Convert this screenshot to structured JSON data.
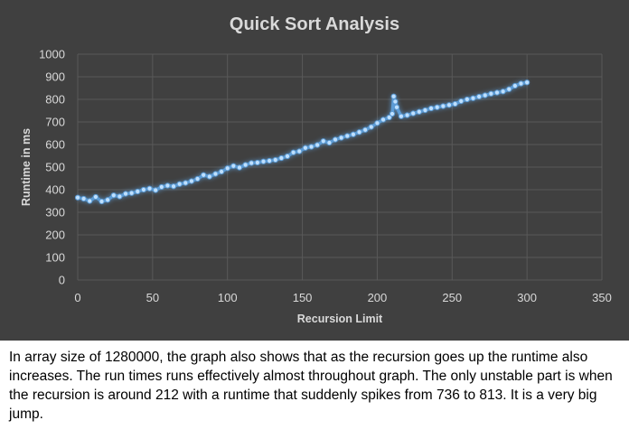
{
  "colors": {
    "background": "#404040",
    "gridline": "#595959",
    "text": "#d9d9d9",
    "series": "#5b9bd5",
    "caption_text": "#000000"
  },
  "chart_data": {
    "type": "scatter",
    "style": "scatter with smooth lines and markers, glowing blue",
    "title": "Quick Sort Analysis",
    "xlabel": "Recursion Limit",
    "ylabel": "Runtime in ms",
    "xlim": [
      0,
      350
    ],
    "ylim": [
      0,
      1000
    ],
    "xticks": [
      0,
      50,
      100,
      150,
      200,
      250,
      300,
      350
    ],
    "yticks": [
      0,
      100,
      200,
      300,
      400,
      500,
      600,
      700,
      800,
      900,
      1000
    ],
    "grid": true,
    "legend": "none",
    "series": [
      {
        "x": [
          0,
          4,
          8,
          12,
          16,
          20,
          24,
          28,
          32,
          36,
          40,
          44,
          48,
          52,
          56,
          60,
          64,
          68,
          72,
          76,
          80,
          84,
          88,
          92,
          96,
          100,
          104,
          108,
          112,
          116,
          120,
          124,
          128,
          132,
          136,
          140,
          144,
          148,
          152,
          156,
          160,
          164,
          168,
          172,
          176,
          180,
          184,
          188,
          192,
          196,
          200,
          204,
          208,
          210,
          211,
          212,
          213,
          216,
          220,
          224,
          228,
          232,
          236,
          240,
          244,
          248,
          252,
          256,
          260,
          264,
          268,
          272,
          276,
          280,
          284,
          288,
          292,
          296,
          300
        ],
        "y": [
          365,
          360,
          350,
          368,
          348,
          355,
          375,
          370,
          382,
          385,
          392,
          400,
          405,
          398,
          412,
          418,
          415,
          425,
          430,
          438,
          448,
          465,
          458,
          470,
          480,
          495,
          505,
          498,
          510,
          518,
          520,
          525,
          528,
          532,
          540,
          548,
          565,
          570,
          585,
          590,
          598,
          615,
          608,
          622,
          630,
          638,
          645,
          655,
          665,
          678,
          695,
          710,
          720,
          736,
          813,
          790,
          765,
          725,
          730,
          738,
          745,
          752,
          760,
          765,
          770,
          775,
          780,
          792,
          800,
          805,
          812,
          818,
          825,
          830,
          835,
          845,
          860,
          870,
          875
        ]
      }
    ]
  },
  "caption": {
    "text": "In array size of 1280000, the graph also shows that as the recursion goes up the runtime also increases. The run times runs effectively almost throughout graph. The only unstable part is when the recursion is around 212 with a runtime that suddenly spikes from 736 to 813. It is a very big jump."
  }
}
